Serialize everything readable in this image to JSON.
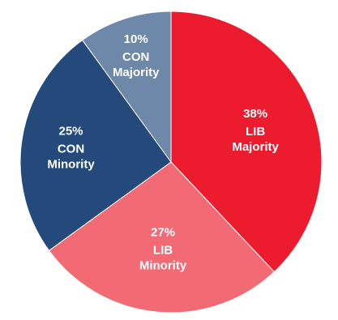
{
  "chart_data": {
    "type": "pie",
    "slices": [
      {
        "label_lines": [
          "LIB",
          "Majority"
        ],
        "percent_label": "38%",
        "value": 38,
        "color": "#ec1c2e"
      },
      {
        "label_lines": [
          "LIB",
          "Minority"
        ],
        "percent_label": "27%",
        "value": 27,
        "color": "#f16a74"
      },
      {
        "label_lines": [
          "CON",
          "Minority"
        ],
        "percent_label": "25%",
        "value": 25,
        "color": "#244a7c"
      },
      {
        "label_lines": [
          "CON",
          "Majority"
        ],
        "percent_label": "10%",
        "value": 10,
        "color": "#6e88aa"
      }
    ],
    "start": "12 o'clock",
    "direction": "clockwise"
  }
}
